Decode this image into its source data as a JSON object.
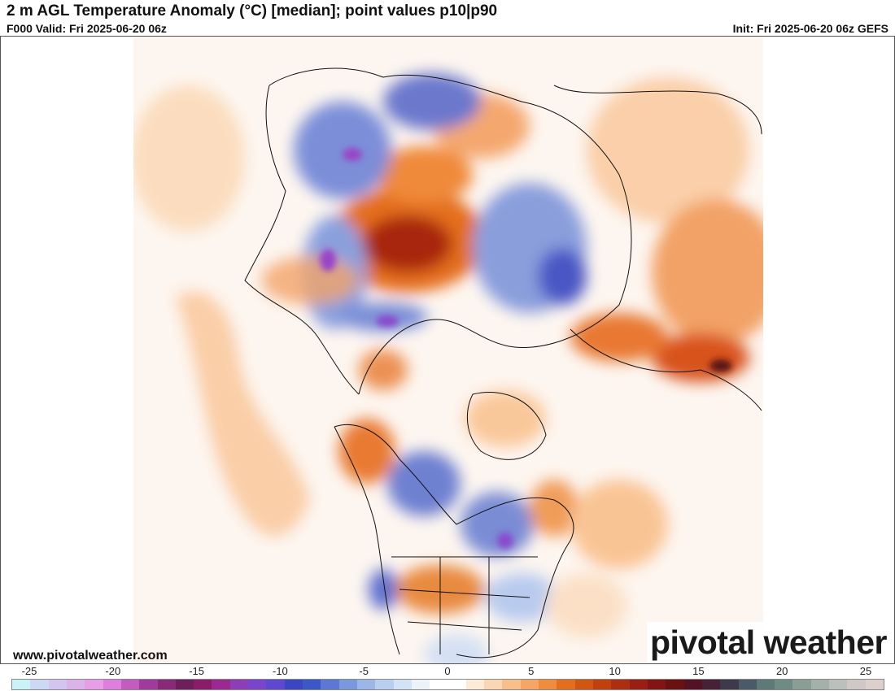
{
  "header": {
    "title": "2 m AGL Temperature Anomaly (°C) [median]; point values p10|p90",
    "valid": "F000 Valid: Fri 2025-06-20 06z",
    "init": "Init: Fri 2025-06-20 06z GEFS"
  },
  "footer": {
    "website": "www.pivotalweather.com",
    "brand": "pivotal weather"
  },
  "colorbar": {
    "ticks": [
      "-25",
      "-20",
      "-15",
      "-10",
      "-5",
      "0",
      "5",
      "10",
      "15",
      "20",
      "25"
    ],
    "colors": [
      "#c8f4f8",
      "#ccd8f4",
      "#d2c6f0",
      "#dbb2ea",
      "#e89ee6",
      "#e07ee0",
      "#c45cc0",
      "#a03a9c",
      "#882a78",
      "#6e1e5c",
      "#8a1c6a",
      "#9a2a90",
      "#8e3cb8",
      "#7a44cc",
      "#5e48d0",
      "#3c46c4",
      "#3a58c8",
      "#5a78d4",
      "#7a98de",
      "#9cb6e8",
      "#b8cff0",
      "#d4e2f6",
      "#ecf2fa",
      "#ffffff",
      "#ffffff",
      "#fdebd8",
      "#fbd6b2",
      "#f9bf8a",
      "#f6a664",
      "#f08c3e",
      "#e46e1c",
      "#d05612",
      "#c0400e",
      "#ad2e10",
      "#9a1e12",
      "#841414",
      "#6a1212",
      "#541224",
      "#452238",
      "#3e3a4c",
      "#4a5a66",
      "#5e7a78",
      "#6e8c84",
      "#8a9e96",
      "#a4b0aa",
      "#bcc0bc",
      "#cfc8c6",
      "#dcd0cc"
    ]
  }
}
